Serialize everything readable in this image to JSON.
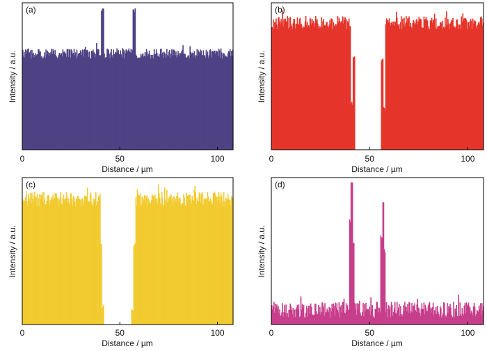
{
  "chart_data": [
    {
      "panel": "(a)",
      "type": "bar",
      "color": "#4f4285",
      "xlabel": "Distance / µm",
      "ylabel": "Intensity / a.u.",
      "xlim": [
        0,
        108
      ],
      "ylim": [
        0,
        1
      ],
      "xticks": [
        "0",
        "50",
        "100"
      ],
      "xtick_values": [
        0,
        50,
        100
      ],
      "profile": {
        "baseline": 0.655,
        "noise": 0.035,
        "features": [
          {
            "from": 40.3,
            "to": 41.9,
            "value": 0.95
          },
          {
            "from": 56.4,
            "to": 58.1,
            "value": 0.95
          }
        ]
      }
    },
    {
      "panel": "(b)",
      "type": "bar",
      "color": "#e5352b",
      "xlabel": "Distance / µm",
      "ylabel": "Intensity / a.u.",
      "xlim": [
        0,
        108
      ],
      "ylim": [
        0,
        1
      ],
      "xticks": [
        "0",
        "50",
        "100"
      ],
      "xtick_values": [
        0,
        50,
        100
      ],
      "profile": {
        "baseline": 0.865,
        "noise": 0.045,
        "features": [
          {
            "from": 40.5,
            "to": 41.5,
            "value": 0.32
          },
          {
            "from": 41.5,
            "to": 42.5,
            "value": 0.62
          },
          {
            "from": 42.5,
            "to": 55.8,
            "value": 0.0
          },
          {
            "from": 55.8,
            "to": 56.8,
            "value": 0.62
          },
          {
            "from": 56.8,
            "to": 57.8,
            "value": 0.28
          }
        ]
      }
    },
    {
      "panel": "(c)",
      "type": "bar",
      "color": "#f2cb30",
      "xlabel": "Distance / µm",
      "ylabel": "Intensity / a.u.",
      "xlim": [
        0,
        108
      ],
      "ylim": [
        0,
        1
      ],
      "xticks": [
        "0",
        "50",
        "100"
      ],
      "xtick_values": [
        0,
        50,
        100
      ],
      "profile": {
        "baseline": 0.855,
        "noise": 0.05,
        "features": [
          {
            "from": 39.8,
            "to": 40.8,
            "value": 0.55
          },
          {
            "from": 40.8,
            "to": 41.8,
            "value": 0.12
          },
          {
            "from": 41.8,
            "to": 55.9,
            "value": 0.0
          },
          {
            "from": 55.9,
            "to": 56.9,
            "value": 0.1
          },
          {
            "from": 56.9,
            "to": 57.8,
            "value": 0.55
          }
        ]
      }
    },
    {
      "panel": "(d)",
      "type": "bar",
      "color": "#c73e8b",
      "xlabel": "Distance / µm",
      "ylabel": "Intensity / a.u.",
      "xlim": [
        0,
        108
      ],
      "ylim": [
        0,
        1
      ],
      "xticks": [
        "0",
        "50",
        "100"
      ],
      "xtick_values": [
        0,
        50,
        100
      ],
      "profile": {
        "baseline": 0.1,
        "noise": 0.055,
        "features": [
          {
            "from": 39.6,
            "to": 40.4,
            "value": 0.7
          },
          {
            "from": 40.4,
            "to": 41.3,
            "value": 0.97
          },
          {
            "from": 41.3,
            "to": 42.0,
            "value": 0.55
          },
          {
            "from": 55.6,
            "to": 56.4,
            "value": 0.6
          },
          {
            "from": 56.4,
            "to": 57.3,
            "value": 0.82
          },
          {
            "from": 57.3,
            "to": 58.0,
            "value": 0.5
          }
        ]
      }
    }
  ]
}
